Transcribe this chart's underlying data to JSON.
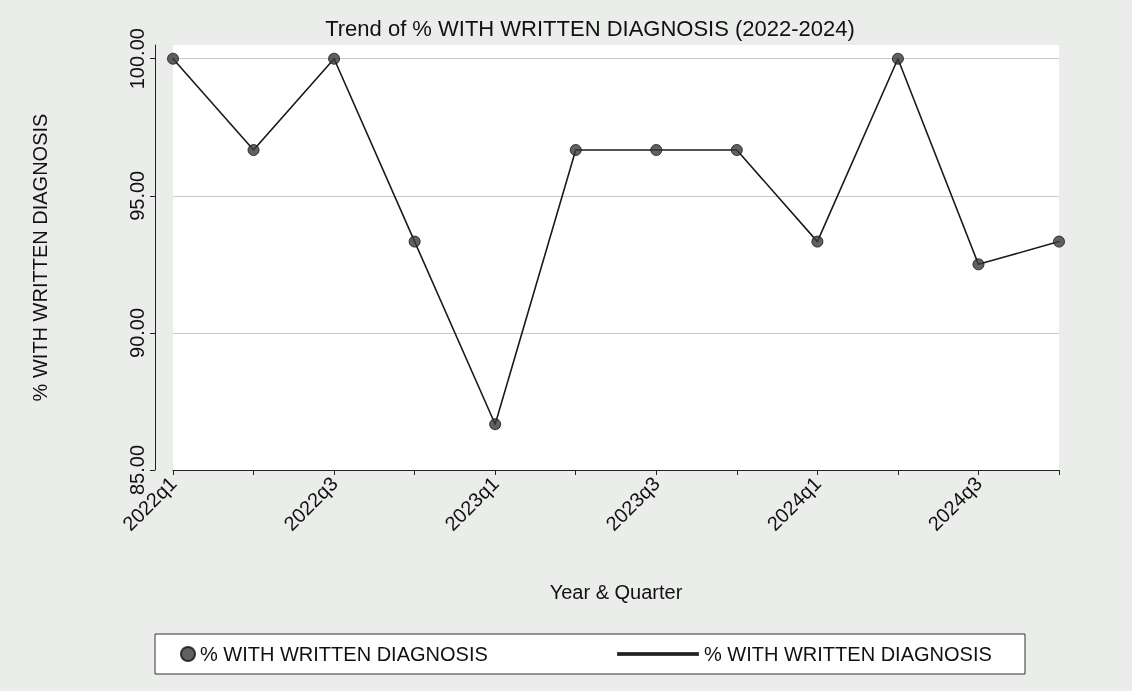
{
  "chart_data": {
    "type": "line",
    "title": "Trend of % WITH WRITTEN DIAGNOSIS (2022-2024)",
    "xlabel": "Year & Quarter",
    "ylabel": "% WITH WRITTEN DIAGNOSIS",
    "categories": [
      "2022q1",
      null,
      "2022q3",
      null,
      "2023q1",
      null,
      "2023q3",
      null,
      "2024q1",
      null,
      "2024q3",
      null
    ],
    "series": [
      {
        "name": "% WITH WRITTEN DIAGNOSIS",
        "type": "scatter",
        "color": "#3a3a3a",
        "marker": "circle",
        "values": [
          100,
          96.67,
          100,
          93.33,
          86.67,
          96.67,
          96.67,
          96.67,
          93.33,
          100,
          92.5,
          93.33
        ]
      },
      {
        "name": "% WITH WRITTEN DIAGNOSIS",
        "color": "#1a1a1a",
        "marker": "none",
        "line_style": "solid",
        "values": [
          100,
          96.67,
          100,
          93.33,
          86.67,
          96.67,
          96.67,
          96.67,
          93.33,
          100,
          92.5,
          93.33
        ]
      }
    ],
    "ylim": [
      85,
      100.5
    ],
    "yticks": [
      {
        "value": 85,
        "label": "85.00"
      },
      {
        "value": 90,
        "label": "90.00"
      },
      {
        "value": 95,
        "label": "95.00"
      },
      {
        "value": 100,
        "label": "100.00"
      }
    ],
    "grid": "y",
    "legend": "bottom"
  }
}
